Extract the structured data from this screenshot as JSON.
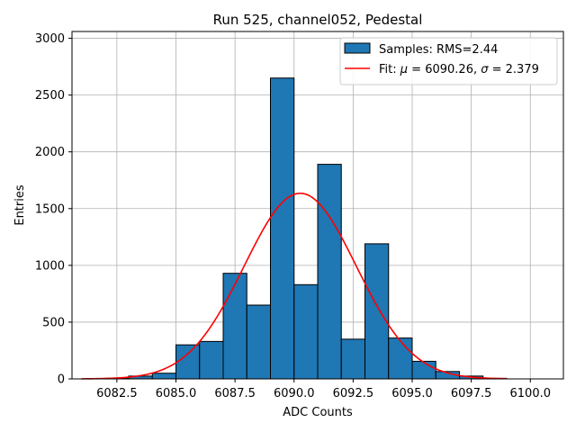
{
  "chart_data": {
    "type": "bar",
    "title": "Run 525, channel052, Pedestal",
    "xlabel": "ADC Counts",
    "ylabel": "Entries",
    "xlim": [
      6080.6,
      6101.4
    ],
    "ylim": [
      0,
      3060
    ],
    "grid": true,
    "x_ticks": [
      6082.5,
      6085.0,
      6087.5,
      6090.0,
      6092.5,
      6095.0,
      6097.5,
      6100.0
    ],
    "x_tick_labels": [
      "6082.5",
      "6085.0",
      "6087.5",
      "6090.0",
      "6092.5",
      "6095.0",
      "6097.5",
      "6100.0"
    ],
    "y_ticks": [
      0,
      500,
      1000,
      1500,
      2000,
      2500,
      3000
    ],
    "y_tick_labels": [
      "0",
      "500",
      "1000",
      "1500",
      "2000",
      "2500",
      "3000"
    ],
    "bin_width": 1,
    "bins": [
      {
        "start": 6082,
        "value": 5
      },
      {
        "start": 6083,
        "value": 25
      },
      {
        "start": 6084,
        "value": 50
      },
      {
        "start": 6085,
        "value": 300
      },
      {
        "start": 6086,
        "value": 330
      },
      {
        "start": 6087,
        "value": 930
      },
      {
        "start": 6088,
        "value": 650
      },
      {
        "start": 6089,
        "value": 2650
      },
      {
        "start": 6090,
        "value": 830
      },
      {
        "start": 6091,
        "value": 1890
      },
      {
        "start": 6092,
        "value": 350
      },
      {
        "start": 6093,
        "value": 1190
      },
      {
        "start": 6094,
        "value": 360
      },
      {
        "start": 6095,
        "value": 155
      },
      {
        "start": 6096,
        "value": 65
      },
      {
        "start": 6097,
        "value": 25
      },
      {
        "start": 6098,
        "value": 5
      }
    ],
    "fit": {
      "mu": 6090.26,
      "sigma": 2.379,
      "amplitude": 1635,
      "x_range": [
        6081,
        6099
      ]
    },
    "series": [
      {
        "name": "Samples",
        "label": "Samples: RMS=2.44",
        "color": "#1f77b4"
      },
      {
        "name": "Fit",
        "label_prefix": "Fit: ",
        "mu_symbol": "μ",
        "mu_text": " = 6090.26, ",
        "sigma_symbol": "σ",
        "sigma_text": " = 2.379",
        "color": "#ff0000"
      }
    ],
    "legend_position": "top-right"
  }
}
